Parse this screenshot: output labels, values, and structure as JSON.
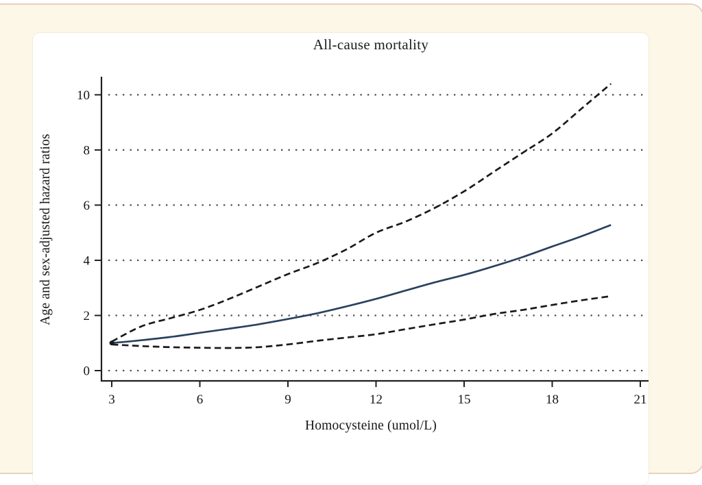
{
  "page": {
    "background_color": "#fdf7e7",
    "card_border_color": "#e7d0c0",
    "panel_color": "#ffffff"
  },
  "chart_data": {
    "type": "line",
    "title": "All-cause mortality",
    "xlabel": "Homocysteine (umol/L)",
    "ylabel": "Age and sex-adjusted hazard ratios",
    "xlim": [
      3,
      21
    ],
    "ylim": [
      0,
      10.6
    ],
    "xticks": [
      3,
      6,
      9,
      12,
      15,
      18,
      21
    ],
    "yticks": [
      0,
      2,
      4,
      6,
      8,
      10
    ],
    "grid": "horizontal-dotted",
    "legend": "none",
    "axis_color": "#1f1f1f",
    "grid_color": "#4b4b4b",
    "x": [
      3,
      4,
      5,
      6,
      7,
      8,
      9,
      10,
      11,
      12,
      13,
      14,
      15,
      16,
      17,
      18,
      19,
      20
    ],
    "series": [
      {
        "name": "hazard-ratio-estimate",
        "style": "solid",
        "color": "#2a415f",
        "values": [
          1.0,
          1.1,
          1.22,
          1.37,
          1.52,
          1.68,
          1.87,
          2.08,
          2.33,
          2.6,
          2.9,
          3.2,
          3.47,
          3.78,
          4.12,
          4.5,
          4.87,
          5.28
        ]
      },
      {
        "name": "upper-dashed-band",
        "style": "dashed",
        "color": "#1a1a1a",
        "values": [
          1.05,
          1.6,
          1.9,
          2.2,
          2.6,
          3.05,
          3.5,
          3.9,
          4.4,
          5.0,
          5.4,
          5.9,
          6.5,
          7.2,
          7.9,
          8.6,
          9.5,
          10.4
        ]
      },
      {
        "name": "lower-dashed-band",
        "style": "dashed",
        "color": "#1a1a1a",
        "values": [
          0.95,
          0.89,
          0.85,
          0.83,
          0.82,
          0.85,
          0.95,
          1.08,
          1.2,
          1.32,
          1.5,
          1.68,
          1.85,
          2.05,
          2.2,
          2.38,
          2.55,
          2.7
        ]
      }
    ]
  }
}
